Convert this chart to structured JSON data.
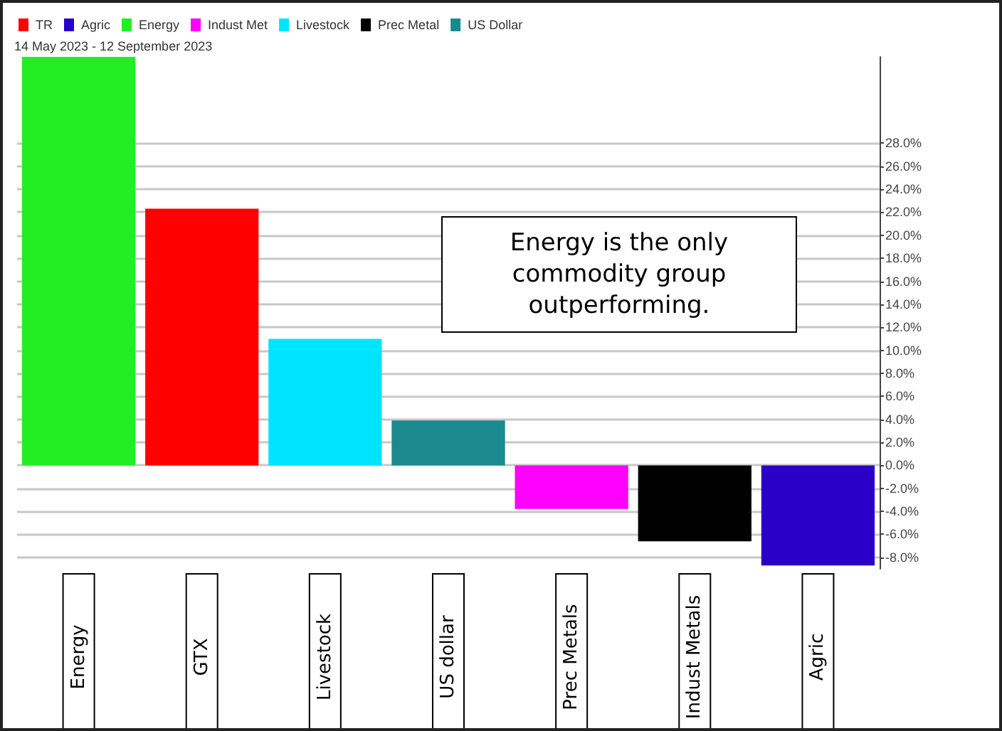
{
  "chart_data": {
    "type": "bar",
    "stacked": true,
    "categories": [
      "Energy",
      "GTX",
      "Livestock",
      "US dollar",
      "Prec Metals",
      "Indust Metals",
      "Agric"
    ],
    "series": [
      {
        "name": "TR",
        "color": "#ff0000",
        "values": [
          null,
          22.3,
          null,
          null,
          null,
          null,
          null
        ]
      },
      {
        "name": "Agric",
        "color": "#2a00c8",
        "values": [
          null,
          null,
          null,
          null,
          null,
          null,
          -8.7
        ]
      },
      {
        "name": "Energy",
        "color": "#22ee22",
        "values": [
          35.5,
          null,
          null,
          null,
          null,
          null,
          null
        ]
      },
      {
        "name": "Indust Met",
        "color": "#ff00ff",
        "values": [
          null,
          null,
          null,
          null,
          -3.8,
          null,
          null
        ]
      },
      {
        "name": "Livestock",
        "color": "#00e5ff",
        "values": [
          null,
          null,
          11.0,
          null,
          null,
          null,
          null
        ]
      },
      {
        "name": "Prec Metal",
        "color": "#000000",
        "values": [
          null,
          null,
          null,
          null,
          null,
          -6.6,
          null
        ]
      },
      {
        "name": "US Dollar",
        "color": "#1a8a8e",
        "values": [
          null,
          null,
          null,
          3.9,
          null,
          null,
          null
        ]
      }
    ],
    "ylim": [
      -9,
      35.5
    ],
    "yticks": [
      {
        "value": -8,
        "label": "-8.0%"
      },
      {
        "value": -6,
        "label": "-6.0%"
      },
      {
        "value": -4,
        "label": "-4.0%"
      },
      {
        "value": -2,
        "label": "-2.0%"
      },
      {
        "value": 0,
        "label": "0.0%"
      },
      {
        "value": 2,
        "label": "2.0%"
      },
      {
        "value": 4,
        "label": "4.0%"
      },
      {
        "value": 6,
        "label": "6.0%"
      },
      {
        "value": 8,
        "label": "8.0%"
      },
      {
        "value": 10,
        "label": "10.0%"
      },
      {
        "value": 12,
        "label": "12.0%"
      },
      {
        "value": 14,
        "label": "14.0%"
      },
      {
        "value": 16,
        "label": "16.0%"
      },
      {
        "value": 18,
        "label": "18.0%"
      },
      {
        "value": 20,
        "label": "20.0%"
      },
      {
        "value": 22,
        "label": "22.0%"
      },
      {
        "value": 24,
        "label": "24.0%"
      },
      {
        "value": 26,
        "label": "26.0%"
      },
      {
        "value": 28,
        "label": "28.0%"
      }
    ],
    "grid": "y",
    "legend": "top left",
    "annotations": [
      "14 May 2023 - 12 September 2023",
      "Energy is the only commodity group outperforming."
    ]
  }
}
